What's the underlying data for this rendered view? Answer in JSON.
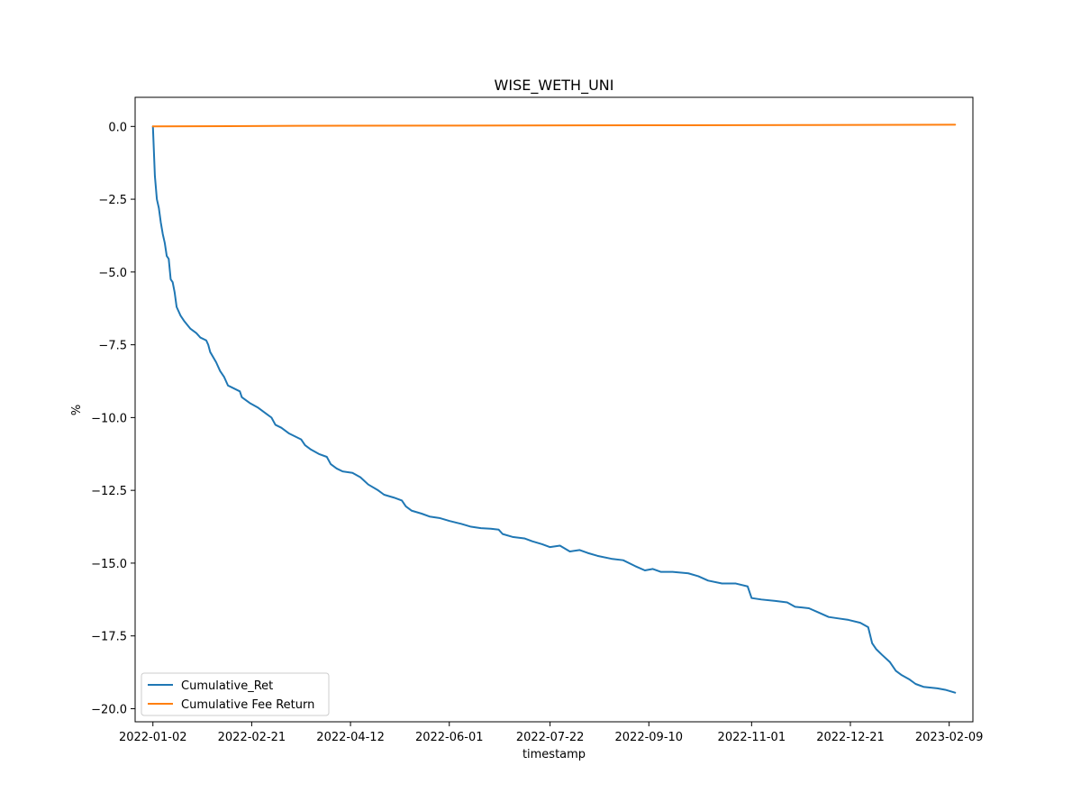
{
  "chart_data": {
    "type": "line",
    "title": "WISE_WETH_UNI",
    "xlabel": "timestamp",
    "ylabel": "%",
    "x_axis_type": "date",
    "xlim": [
      "2021-12-24",
      "2023-02-21"
    ],
    "ylim": [
      -20.45,
      1.0
    ],
    "grid": false,
    "legend_position": "lower-left",
    "x_ticks": [
      "2022-01-02",
      "2022-02-21",
      "2022-04-12",
      "2022-06-01",
      "2022-07-22",
      "2022-09-10",
      "2022-11-01",
      "2022-12-21",
      "2023-02-09"
    ],
    "y_ticks": [
      0.0,
      -2.5,
      -5.0,
      -7.5,
      -10.0,
      -12.5,
      -15.0,
      -17.5,
      -20.0
    ],
    "y_tick_labels": [
      "0.0",
      "−2.5",
      "−5.0",
      "−7.5",
      "−10.0",
      "−12.5",
      "−15.0",
      "−17.5",
      "−20.0"
    ],
    "series": [
      {
        "name": "Cumulative_Ret",
        "color": "#1f77b4",
        "points": [
          [
            "2022-01-02",
            0.0
          ],
          [
            "2022-01-03",
            -1.7
          ],
          [
            "2022-01-04",
            -2.5
          ],
          [
            "2022-01-05",
            -2.8
          ],
          [
            "2022-01-06",
            -3.3
          ],
          [
            "2022-01-07",
            -3.7
          ],
          [
            "2022-01-08",
            -4.0
          ],
          [
            "2022-01-09",
            -4.45
          ],
          [
            "2022-01-10",
            -4.55
          ],
          [
            "2022-01-11",
            -5.25
          ],
          [
            "2022-01-12",
            -5.35
          ],
          [
            "2022-01-13",
            -5.7
          ],
          [
            "2022-01-14",
            -6.2
          ],
          [
            "2022-01-16",
            -6.5
          ],
          [
            "2022-01-18",
            -6.7
          ],
          [
            "2022-01-21",
            -6.95
          ],
          [
            "2022-01-24",
            -7.1
          ],
          [
            "2022-01-26",
            -7.25
          ],
          [
            "2022-01-29",
            -7.35
          ],
          [
            "2022-01-30",
            -7.5
          ],
          [
            "2022-01-31",
            -7.75
          ],
          [
            "2022-02-03",
            -8.1
          ],
          [
            "2022-02-05",
            -8.4
          ],
          [
            "2022-02-07",
            -8.6
          ],
          [
            "2022-02-09",
            -8.9
          ],
          [
            "2022-02-12",
            -9.0
          ],
          [
            "2022-02-15",
            -9.1
          ],
          [
            "2022-02-16",
            -9.3
          ],
          [
            "2022-02-20",
            -9.5
          ],
          [
            "2022-02-24",
            -9.65
          ],
          [
            "2022-02-27",
            -9.8
          ],
          [
            "2022-03-01",
            -9.9
          ],
          [
            "2022-03-03",
            -10.0
          ],
          [
            "2022-03-05",
            -10.25
          ],
          [
            "2022-03-08",
            -10.35
          ],
          [
            "2022-03-12",
            -10.55
          ],
          [
            "2022-03-15",
            -10.65
          ],
          [
            "2022-03-18",
            -10.75
          ],
          [
            "2022-03-20",
            -10.95
          ],
          [
            "2022-03-23",
            -11.1
          ],
          [
            "2022-03-27",
            -11.25
          ],
          [
            "2022-03-31",
            -11.35
          ],
          [
            "2022-04-02",
            -11.6
          ],
          [
            "2022-04-05",
            -11.75
          ],
          [
            "2022-04-08",
            -11.85
          ],
          [
            "2022-04-13",
            -11.9
          ],
          [
            "2022-04-17",
            -12.05
          ],
          [
            "2022-04-21",
            -12.3
          ],
          [
            "2022-04-26",
            -12.5
          ],
          [
            "2022-04-29",
            -12.65
          ],
          [
            "2022-05-04",
            -12.75
          ],
          [
            "2022-05-08",
            -12.85
          ],
          [
            "2022-05-10",
            -13.05
          ],
          [
            "2022-05-13",
            -13.2
          ],
          [
            "2022-05-18",
            -13.3
          ],
          [
            "2022-05-22",
            -13.4
          ],
          [
            "2022-05-27",
            -13.45
          ],
          [
            "2022-06-01",
            -13.55
          ],
          [
            "2022-06-07",
            -13.65
          ],
          [
            "2022-06-12",
            -13.75
          ],
          [
            "2022-06-17",
            -13.8
          ],
          [
            "2022-06-22",
            -13.82
          ],
          [
            "2022-06-26",
            -13.85
          ],
          [
            "2022-06-28",
            -14.0
          ],
          [
            "2022-07-03",
            -14.1
          ],
          [
            "2022-07-09",
            -14.15
          ],
          [
            "2022-07-13",
            -14.25
          ],
          [
            "2022-07-18",
            -14.35
          ],
          [
            "2022-07-22",
            -14.45
          ],
          [
            "2022-07-27",
            -14.4
          ],
          [
            "2022-08-01",
            -14.6
          ],
          [
            "2022-08-06",
            -14.55
          ],
          [
            "2022-08-10",
            -14.65
          ],
          [
            "2022-08-15",
            -14.75
          ],
          [
            "2022-08-22",
            -14.85
          ],
          [
            "2022-08-28",
            -14.9
          ],
          [
            "2022-09-03",
            -15.1
          ],
          [
            "2022-09-08",
            -15.25
          ],
          [
            "2022-09-12",
            -15.2
          ],
          [
            "2022-09-16",
            -15.3
          ],
          [
            "2022-09-22",
            -15.3
          ],
          [
            "2022-09-30",
            -15.35
          ],
          [
            "2022-10-05",
            -15.45
          ],
          [
            "2022-10-10",
            -15.6
          ],
          [
            "2022-10-17",
            -15.7
          ],
          [
            "2022-10-24",
            -15.7
          ],
          [
            "2022-10-30",
            -15.8
          ],
          [
            "2022-11-01",
            -16.2
          ],
          [
            "2022-11-06",
            -16.25
          ],
          [
            "2022-11-13",
            -16.3
          ],
          [
            "2022-11-19",
            -16.35
          ],
          [
            "2022-11-23",
            -16.5
          ],
          [
            "2022-11-30",
            -16.55
          ],
          [
            "2022-12-05",
            -16.7
          ],
          [
            "2022-12-10",
            -16.85
          ],
          [
            "2022-12-15",
            -16.9
          ],
          [
            "2022-12-20",
            -16.95
          ],
          [
            "2022-12-26",
            -17.05
          ],
          [
            "2022-12-30",
            -17.2
          ],
          [
            "2023-01-01",
            -17.75
          ],
          [
            "2023-01-03",
            -17.95
          ],
          [
            "2023-01-06",
            -18.15
          ],
          [
            "2023-01-10",
            -18.4
          ],
          [
            "2023-01-13",
            -18.7
          ],
          [
            "2023-01-16",
            -18.85
          ],
          [
            "2023-01-20",
            -19.0
          ],
          [
            "2023-01-23",
            -19.15
          ],
          [
            "2023-01-27",
            -19.25
          ],
          [
            "2023-02-03",
            -19.3
          ],
          [
            "2023-02-07",
            -19.35
          ],
          [
            "2023-02-12",
            -19.45
          ]
        ]
      },
      {
        "name": "Cumulative Fee Return",
        "color": "#ff7f0e",
        "points": [
          [
            "2022-01-02",
            0.0
          ],
          [
            "2022-03-15",
            0.02
          ],
          [
            "2022-06-01",
            0.03
          ],
          [
            "2022-09-10",
            0.04
          ],
          [
            "2022-12-01",
            0.05
          ],
          [
            "2023-02-12",
            0.06
          ]
        ]
      }
    ]
  }
}
